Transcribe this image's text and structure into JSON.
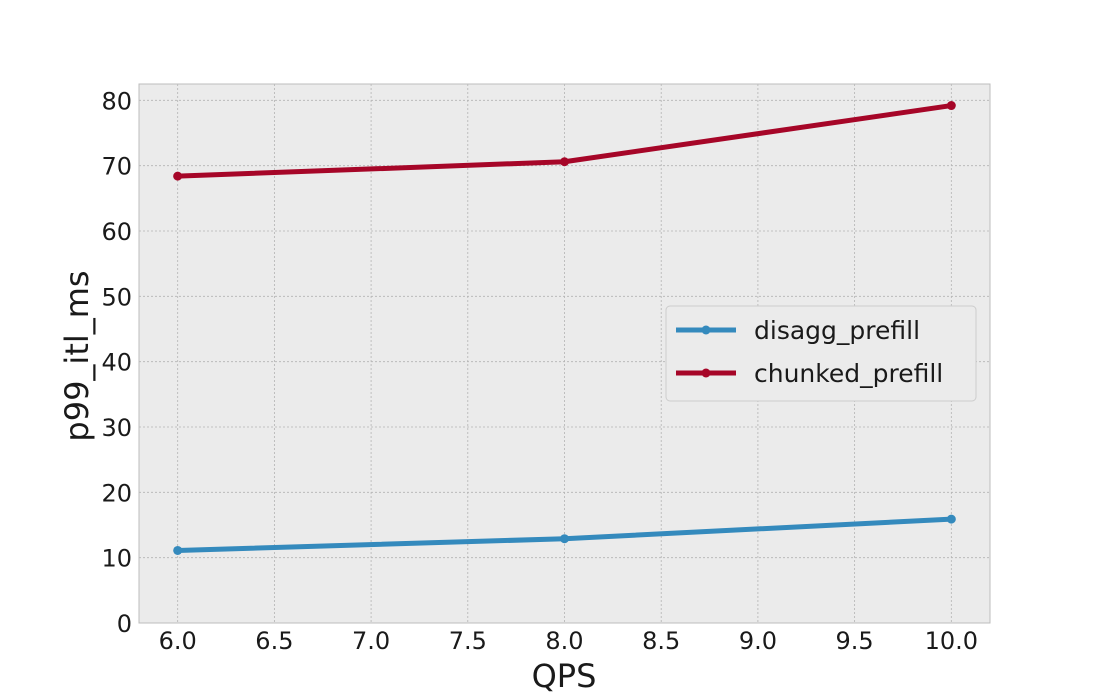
{
  "chart_data": {
    "type": "line",
    "title": "",
    "xlabel": "QPS",
    "ylabel": "p99_itl_ms",
    "xlim": [
      5.8,
      10.2
    ],
    "ylim": [
      0,
      82.5
    ],
    "xticks": [
      "6.0",
      "6.5",
      "7.0",
      "7.5",
      "8.0",
      "8.5",
      "9.0",
      "9.5",
      "10.0"
    ],
    "yticks": [
      "0",
      "10",
      "20",
      "30",
      "40",
      "50",
      "60",
      "70",
      "80"
    ],
    "grid": true,
    "legend_position": "center-right",
    "x": [
      6.0,
      8.0,
      10.0
    ],
    "series": [
      {
        "name": "disagg_prefill",
        "values": [
          11.1,
          12.9,
          15.9
        ],
        "color": "#348abd",
        "marker": "circle"
      },
      {
        "name": "chunked_prefill",
        "values": [
          68.4,
          70.6,
          79.2
        ],
        "color": "#a60628",
        "marker": "circle"
      }
    ]
  },
  "style": {
    "plot_background": "#ebebeb",
    "grid_color": "#b3b3b3",
    "frame_color": "#bcbcbc"
  }
}
